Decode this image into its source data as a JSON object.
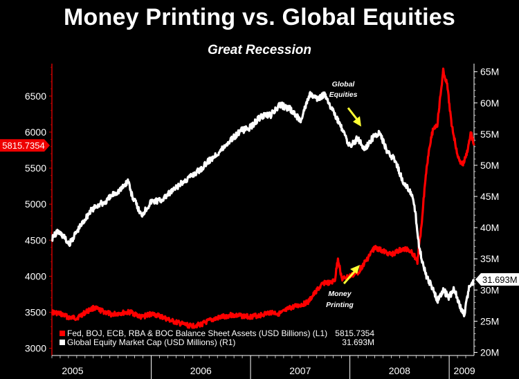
{
  "chart_data": {
    "type": "line",
    "title": "Money Printing vs. Global Equities",
    "subtitle": "Great Recession",
    "x_tick_labels": [
      "2005",
      "2006",
      "2007",
      "2008",
      "2009"
    ],
    "y_left": {
      "ticks": [
        "3000",
        "3500",
        "4000",
        "4500",
        "5000",
        "5500",
        "6000",
        "6500"
      ],
      "range": [
        2900,
        6950
      ]
    },
    "y_right": {
      "ticks": [
        "20M",
        "25M",
        "30M",
        "35M",
        "40M",
        "45M",
        "50M",
        "55M",
        "60M",
        "65M"
      ],
      "range": [
        19.5,
        66.3
      ]
    },
    "x_range": [
      2005.0,
      2009.25
    ],
    "series": [
      {
        "name": "Fed, BOJ, ECB, RBA & BOC Balance Sheet Assets (USD Billions) (L1)",
        "axis": "left",
        "color": "#ff0000",
        "last_value": "5815.7354",
        "last_label": "5815.7354",
        "x": [
          2005.0,
          2005.08,
          2005.17,
          2005.25,
          2005.35,
          2005.42,
          2005.5,
          2005.6,
          2005.7,
          2005.8,
          2005.9,
          2006.0,
          2006.1,
          2006.2,
          2006.3,
          2006.4,
          2006.5,
          2006.6,
          2006.7,
          2006.8,
          2006.9,
          2007.0,
          2007.1,
          2007.2,
          2007.3,
          2007.4,
          2007.5,
          2007.58,
          2007.67,
          2007.75,
          2007.8,
          2007.85,
          2007.88,
          2007.92,
          2008.0,
          2008.08,
          2008.17,
          2008.25,
          2008.33,
          2008.42,
          2008.5,
          2008.58,
          2008.62,
          2008.66,
          2008.68,
          2008.72,
          2008.76,
          2008.8,
          2008.84,
          2008.88,
          2008.9,
          2008.94,
          2008.98,
          2009.02,
          2009.06,
          2009.1,
          2009.14,
          2009.18,
          2009.22,
          2009.25
        ],
        "values": [
          3500,
          3480,
          3430,
          3420,
          3510,
          3560,
          3520,
          3470,
          3490,
          3500,
          3430,
          3480,
          3440,
          3380,
          3340,
          3310,
          3330,
          3390,
          3430,
          3460,
          3450,
          3440,
          3460,
          3500,
          3480,
          3560,
          3600,
          3640,
          3810,
          3920,
          3900,
          3950,
          4250,
          3960,
          4000,
          4050,
          4230,
          4400,
          4350,
          4300,
          4360,
          4380,
          4340,
          4260,
          4200,
          4700,
          5350,
          5800,
          6050,
          6100,
          6350,
          6850,
          6650,
          6150,
          5850,
          5600,
          5550,
          5720,
          6000,
          5815
        ]
      },
      {
        "name": "Global Equity Market Cap (USD Millions) (R1)",
        "axis": "right",
        "color": "#ffffff",
        "last_value": "31.693M",
        "last_label": "31.693M",
        "x": [
          2005.0,
          2005.06,
          2005.12,
          2005.17,
          2005.22,
          2005.3,
          2005.38,
          2005.46,
          2005.54,
          2005.62,
          2005.7,
          2005.77,
          2005.8,
          2005.9,
          2006.0,
          2006.1,
          2006.2,
          2006.3,
          2006.4,
          2006.5,
          2006.6,
          2006.7,
          2006.8,
          2006.9,
          2007.0,
          2007.1,
          2007.2,
          2007.3,
          2007.4,
          2007.5,
          2007.55,
          2007.6,
          2007.67,
          2007.75,
          2007.83,
          2007.9,
          2008.0,
          2008.08,
          2008.15,
          2008.22,
          2008.3,
          2008.38,
          2008.46,
          2008.54,
          2008.6,
          2008.65,
          2008.7,
          2008.74,
          2008.78,
          2008.83,
          2008.88,
          2008.94,
          2009.0,
          2009.05,
          2009.1,
          2009.15,
          2009.2,
          2009.25
        ],
        "values": [
          38.3,
          39.4,
          38.6,
          37.2,
          38.6,
          40.6,
          42.5,
          43.6,
          44.1,
          45.4,
          46.2,
          47.6,
          45.4,
          42.0,
          44.2,
          44.4,
          45.7,
          47.0,
          48.3,
          49.4,
          51.0,
          52.4,
          54.1,
          55.5,
          56.1,
          57.8,
          58.0,
          59.7,
          59.0,
          57.2,
          59.3,
          61.5,
          60.5,
          61.5,
          58.6,
          56.5,
          53.0,
          54.4,
          52.5,
          54.3,
          55.1,
          52.1,
          50.7,
          47.0,
          46.2,
          43.7,
          36.7,
          33.9,
          31.8,
          30.5,
          28.3,
          30.0,
          28.8,
          30.3,
          27.7,
          26.1,
          30.2,
          31.7
        ]
      }
    ],
    "annotations": [
      {
        "text": "Global Equities",
        "lines": [
          "Global",
          "Equities"
        ]
      },
      {
        "text": "Money Printing",
        "lines": [
          "Money",
          "Printing"
        ]
      }
    ],
    "legend": {
      "placement": "bottom-left",
      "items": [
        {
          "label": "Fed, BOJ, ECB, RBA & BOC Balance Sheet Assets (USD Billions) (L1)",
          "value": "5815.7354",
          "color": "#ff0000"
        },
        {
          "label": "Global Equity Market Cap (USD Millions) (R1)",
          "value": "31.693M",
          "color": "#ffffff"
        }
      ]
    },
    "colors": {
      "background": "#000000",
      "left_axis": "#cc0000",
      "right_axis": "#ffffff",
      "annotation_arrow": "#ffff33",
      "label_box_left": "#ee0000"
    }
  }
}
